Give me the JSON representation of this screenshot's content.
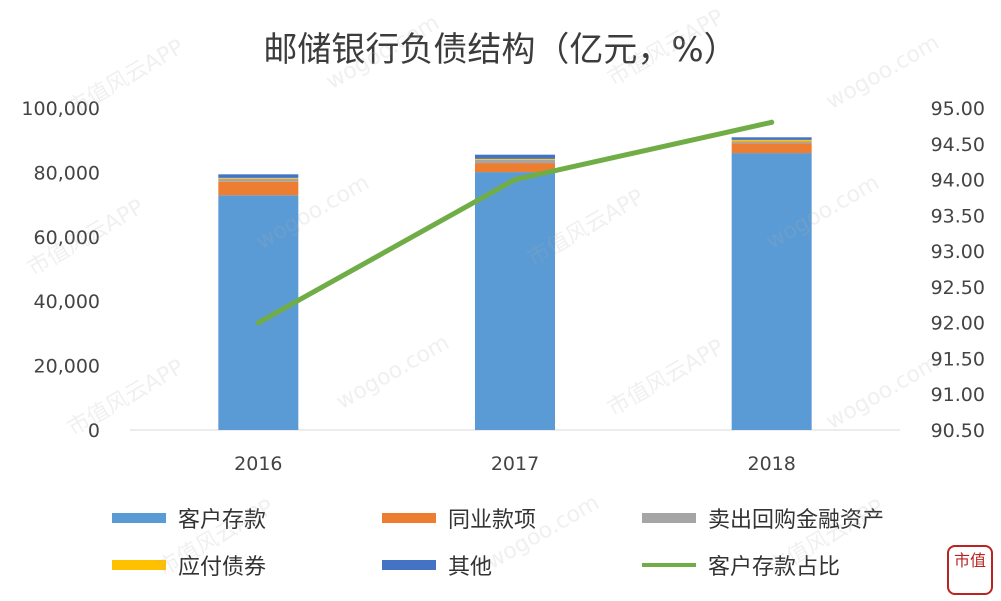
{
  "chart_data": {
    "type": "bar",
    "title": "邮储银行负债结构（亿元，%）",
    "categories": [
      "2016",
      "2017",
      "2018"
    ],
    "left_axis": {
      "ylim": [
        0,
        100000
      ],
      "ticks": [
        "0",
        "20,000",
        "40,000",
        "60,000",
        "80,000",
        "100,000"
      ]
    },
    "right_axis": {
      "ylim": [
        90.5,
        95.0
      ],
      "ticks": [
        "90.50",
        "91.00",
        "91.50",
        "92.00",
        "92.50",
        "93.00",
        "93.50",
        "94.00",
        "94.50",
        "95.00"
      ]
    },
    "series": [
      {
        "name": "客户存款",
        "kind": "bar",
        "color": "#5b9bd5",
        "values": [
          72900,
          80100,
          86000
        ]
      },
      {
        "name": "同业款项",
        "kind": "bar",
        "color": "#ed7d31",
        "values": [
          4200,
          2800,
          3000
        ]
      },
      {
        "name": "卖出回购金融资产",
        "kind": "bar",
        "color": "#a5a5a5",
        "values": [
          900,
          1000,
          600
        ]
      },
      {
        "name": "应付债券",
        "kind": "bar",
        "color": "#ffc000",
        "values": [
          300,
          300,
          500
        ]
      },
      {
        "name": "其他",
        "kind": "bar",
        "color": "#4472c4",
        "values": [
          1100,
          1300,
          800
        ]
      },
      {
        "name": "客户存款占比",
        "kind": "line",
        "color": "#70ad47",
        "axis": "right",
        "values": [
          92.0,
          94.0,
          94.8
        ]
      }
    ],
    "legend_position": "bottom",
    "grid": false
  },
  "watermark": {
    "text": "市值风云APP",
    "site": "wogoo.com"
  },
  "logo": {
    "text": "市值"
  }
}
